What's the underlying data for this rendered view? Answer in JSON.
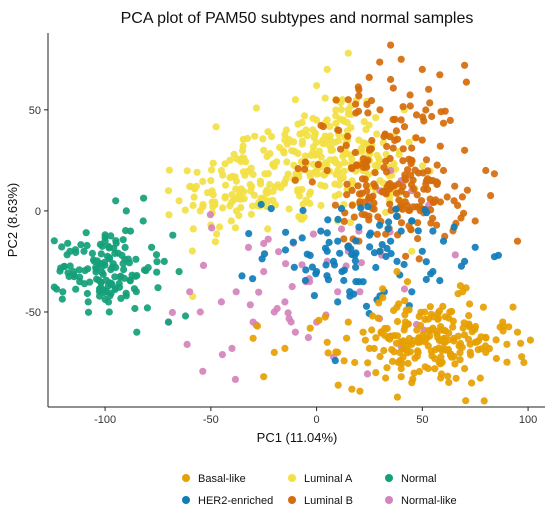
{
  "chart_data": {
    "type": "scatter",
    "title": "PCA plot of PAM50 subtypes and normal samples",
    "xlabel": "PC1 (11.04%)",
    "ylabel": "PC2 (8.63%)",
    "xlim": [
      -127,
      108
    ],
    "ylim": [
      -97,
      88
    ],
    "x_ticks": [
      -100,
      -50,
      0,
      50,
      100
    ],
    "y_ticks": [
      -50,
      0,
      50
    ],
    "grid": false,
    "legend_position": "bottom",
    "series": [
      {
        "name": "Basal-like",
        "color": "#E6A000",
        "clusters": [
          {
            "cx": 52,
            "cy": -65,
            "sx": 20,
            "sy": 11
          }
        ],
        "count": 190,
        "x": [
          -3,
          5,
          10,
          15,
          18,
          22,
          25,
          30,
          35,
          40,
          42,
          45,
          48,
          50,
          55,
          58,
          60,
          63,
          65,
          67,
          70,
          72,
          75,
          80,
          85,
          90,
          95,
          -30,
          -20,
          -15,
          -28,
          -25,
          40,
          45,
          28,
          38,
          43,
          68,
          88,
          98
        ],
        "y": [
          -58,
          -65,
          -70,
          -55,
          -75,
          -60,
          -68,
          -72,
          -62,
          -78,
          -55,
          -66,
          -70,
          -64,
          -58,
          -75,
          -68,
          -50,
          -72,
          -62,
          -78,
          -56,
          -65,
          -70,
          -73,
          -66,
          -60,
          -63,
          -70,
          -68,
          -57,
          -82,
          -82,
          -85,
          -80,
          -30,
          -35,
          -37,
          -55,
          -75
        ]
      },
      {
        "name": "HER2-enriched",
        "color": "#0F7DB8",
        "clusters": [
          {
            "cx": 20,
            "cy": -20,
            "sx": 22,
            "sy": 14
          }
        ],
        "count": 75,
        "x": [
          2,
          5,
          8,
          10,
          12,
          15,
          18,
          20,
          22,
          25,
          28,
          30,
          32,
          35,
          38,
          40,
          45,
          50,
          55,
          60,
          65,
          70,
          75,
          -3,
          0,
          10,
          20,
          30,
          45,
          55
        ],
        "y": [
          -10,
          -20,
          -25,
          -15,
          -30,
          -18,
          -22,
          -8,
          -35,
          -12,
          -28,
          -20,
          -40,
          -15,
          -25,
          -10,
          -5,
          -20,
          -30,
          -15,
          -8,
          -25,
          -18,
          -22,
          -30,
          -45,
          -35,
          -42,
          -40,
          -10
        ]
      },
      {
        "name": "Luminal A",
        "color": "#F2E044",
        "clusters": [
          {
            "cx": -12,
            "cy": 18,
            "sx": 17,
            "sy": 13
          },
          {
            "cx": 5,
            "cy": 35,
            "sx": 13,
            "sy": 14
          },
          {
            "cx": -40,
            "cy": 8,
            "sx": 12,
            "sy": 12
          },
          {
            "cx": 25,
            "cy": 22,
            "sx": 12,
            "sy": 12
          }
        ],
        "count": 330,
        "x": [
          -70,
          -65,
          -60,
          -55,
          -50,
          -45,
          -40,
          -35,
          -30,
          -25,
          -20,
          -15,
          -10,
          -5,
          0,
          5,
          10,
          15,
          20,
          25,
          30,
          35,
          40,
          -10,
          0,
          5,
          15,
          10,
          45
        ],
        "y": [
          10,
          5,
          12,
          0,
          15,
          20,
          8,
          25,
          18,
          30,
          22,
          35,
          15,
          40,
          28,
          45,
          20,
          50,
          35,
          25,
          15,
          10,
          5,
          55,
          62,
          70,
          78,
          -5,
          -20
        ]
      },
      {
        "name": "Luminal B",
        "color": "#D56B0A",
        "clusters": [
          {
            "cx": 32,
            "cy": 28,
            "sx": 18,
            "sy": 18
          },
          {
            "cx": 42,
            "cy": 5,
            "sx": 14,
            "sy": 10
          }
        ],
        "count": 210,
        "x": [
          5,
          10,
          15,
          20,
          25,
          30,
          35,
          40,
          45,
          50,
          55,
          60,
          65,
          70,
          75,
          80,
          95,
          35,
          40,
          50,
          70,
          20,
          30
        ],
        "y": [
          20,
          40,
          55,
          60,
          30,
          50,
          65,
          45,
          25,
          35,
          15,
          20,
          5,
          30,
          -5,
          20,
          -15,
          82,
          75,
          70,
          72,
          -15,
          -20
        ]
      },
      {
        "name": "Normal",
        "color": "#13A07A",
        "clusters": [
          {
            "cx": -100,
            "cy": -28,
            "sx": 11,
            "sy": 10
          }
        ],
        "count": 115,
        "x": [
          -120,
          -115,
          -112,
          -110,
          -108,
          -105,
          -102,
          -100,
          -98,
          -95,
          -92,
          -90,
          -88,
          -85,
          -82,
          -80,
          -78,
          -75,
          -72,
          -70,
          -68,
          -65,
          -62,
          -95,
          -90,
          -85
        ],
        "y": [
          -40,
          -30,
          -35,
          -20,
          -45,
          -25,
          -38,
          -15,
          -50,
          -28,
          -22,
          -42,
          -10,
          -32,
          -5,
          -48,
          -18,
          -38,
          -25,
          -55,
          -12,
          -30,
          -52,
          5,
          0,
          -60
        ]
      },
      {
        "name": "Normal-like",
        "color": "#D583BC",
        "clusters": [
          {
            "cx": -5,
            "cy": -40,
            "sx": 30,
            "sy": 22
          }
        ],
        "count": 45,
        "x": [
          -70,
          -60,
          -55,
          -45,
          -40,
          -38,
          -30,
          -25,
          -20,
          -15,
          -10,
          -5,
          0,
          5,
          10,
          15,
          20,
          25,
          30,
          35,
          40,
          45
        ],
        "y": [
          -55,
          -40,
          -50,
          -45,
          -68,
          -40,
          -55,
          -30,
          -50,
          -45,
          -60,
          -35,
          -55,
          -25,
          -40,
          -20,
          -10,
          5,
          10,
          20,
          15,
          10
        ]
      }
    ]
  }
}
